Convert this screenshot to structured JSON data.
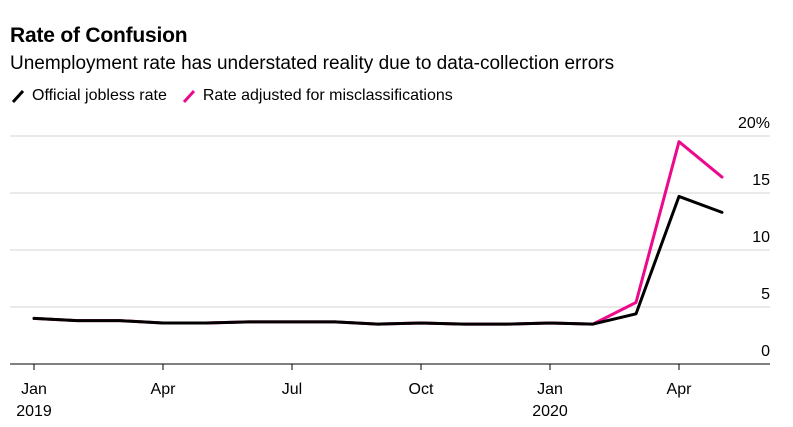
{
  "chart_data": {
    "type": "line",
    "title": "Rate of Confusion",
    "subtitle": "Unemployment rate has understated reality due to data-collection errors",
    "x_labels": [
      {
        "month": "Jan",
        "year": "2019",
        "index": 0
      },
      {
        "month": "Apr",
        "year": "",
        "index": 3
      },
      {
        "month": "Jul",
        "year": "",
        "index": 6
      },
      {
        "month": "Oct",
        "year": "",
        "index": 9
      },
      {
        "month": "Jan",
        "year": "2020",
        "index": 12
      },
      {
        "month": "Apr",
        "year": "",
        "index": 15
      }
    ],
    "x": [
      "2019-01",
      "2019-02",
      "2019-03",
      "2019-04",
      "2019-05",
      "2019-06",
      "2019-07",
      "2019-08",
      "2019-09",
      "2019-10",
      "2019-11",
      "2019-12",
      "2020-01",
      "2020-02",
      "2020-03",
      "2020-04",
      "2020-05"
    ],
    "ylim": [
      0,
      20
    ],
    "y_ticks": [
      {
        "value": 20,
        "label": "20%"
      },
      {
        "value": 15,
        "label": "15"
      },
      {
        "value": 10,
        "label": "10"
      },
      {
        "value": 5,
        "label": "5"
      },
      {
        "value": 0,
        "label": "0"
      }
    ],
    "grid": true,
    "legend_position": "top-left",
    "series": [
      {
        "name": "Official jobless rate",
        "color": "#000000",
        "values": [
          4.0,
          3.8,
          3.8,
          3.6,
          3.6,
          3.7,
          3.7,
          3.7,
          3.5,
          3.6,
          3.5,
          3.5,
          3.6,
          3.5,
          4.4,
          14.7,
          13.3
        ]
      },
      {
        "name": "Rate adjusted for misclassifications",
        "color": "#ec0a8c",
        "values": [
          4.0,
          3.8,
          3.8,
          3.6,
          3.6,
          3.7,
          3.7,
          3.7,
          3.5,
          3.6,
          3.5,
          3.5,
          3.6,
          3.5,
          5.4,
          19.5,
          16.4
        ]
      }
    ]
  }
}
